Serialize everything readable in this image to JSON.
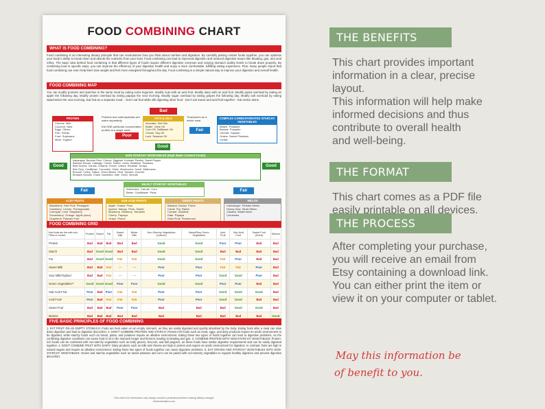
{
  "chart": {
    "title_part1": "FOOD ",
    "title_part2": "COMBINING",
    "title_part3": " CHART",
    "what_heading": "WHAT IS FOOD COMBINING?",
    "what_text": "Food combining is an interesting dietary principle that can revolutionise how you think about nutrition and digestion. By carefully pairing certain foods together, you can optimise your body's ability to break down and absorb the nutrients from your food. Food combining can lead to improved digestion and reduced digestive issues like bloating, gas, and acid reflux. The basic idea behind food combining is that different types of foods require different digestive enzymes and varying stomach acidity levels to break down properly. By combining food in specific ways, you can improve the efficiency of your digestive health and enjoy a more comfortable, fulfilling eating experience. Plus, many people report that food combining can even help them lose weight and feel more energised throughout the day. Food combining is a simple natural way to improve your digestion and overall health.",
    "map_heading": "FOOD COMBINING MAP",
    "map_text": "You can modify proteins and starches in the same meal by eating some legumes. Modify nuts with an acid fruit. Modify dairy with an acid fruit. Modify pasta overload by eating an apple the following day. Modify protein overload by eating papaya the next morning. Modify sugar overload by eating grapes the following day. Modify salt overload by eating watermelon the next morning. Eat fruit as a separate meal. - Don't eat fruit while still digesting other food - Don't eat sweet and acid fruit together - Eat melon alone.",
    "map": {
      "bad_label": "Bad",
      "poor_label": "Poor",
      "fair_label": "Fair",
      "good_label": "Good",
      "protein_title": "PROTEIN",
      "protein_items": "Cheese  Milk\nCoconut  Nuts\nEggs  Olives\nFish  Seeds\nFowl  Soybeans\nMeat  Yoghurt",
      "protein_note": "Proteins and carbohydrates are eaten separately.\n\nEat ONE particular concentrated protein at a single meal.",
      "fats_title": "FATS & OILS",
      "fats_items": "Avocado  Nut Oils\nButter  Olive Oil\nCorn Oil  Safflower Oil\nCream  Soy Oil\nLard  Sesame Oil",
      "juice_note": "Treat juices as a whole meal.",
      "starch_title": "COMPLEX CARBOHYDRATES STARCHY VEGETABLES",
      "starch_items": "Beans  Potatoes\nBreads  Pumpkin\nCereals  Squash\nGrains  Sweet Potatoes\nLentils",
      "nonstarchy_title": "NON-STARCHY VEGETABLES (High Water Content Foods)",
      "nonstarchy_items": "Asparagus  Burdock Root  Chicory  Eggplant  Kohlrabi  Parsley  Sweet Pepper\nBamboo Shoots  Cabbage  Chives  Endive  Leeks  Radishes  Tomatoes\nBeet Greens  Carrots  Collards  Fennel  Lettuce  Rhubarb  Turnips\nBok Choy  Cauliflower  Cucumber  Garlic  Mushrooms  Sorrel  Watercress\nBroccoli  Celery  Daikon  Green Beans  Okra  Spinach  Zucchini\nBrussels Sprouts  Chard  Dandelion  Kale  Onion  Sprouts",
      "mildly_title": "MILDLY STARCHY VEGETABLES",
      "mildly_items": "Artichokes  Carrots  Corn\nBeets  Cauliflower  Peas",
      "acid_title": "ACID FRUITS",
      "acid_items": "Blackberry  Kiwi Fruit  Pineapple\nCranberry  Lemon  Pomegranate\nCumquat  Lime  Raspberry\nGooseberry  Orange  Apple (sour)\nGrapefruit  Passion Fruit",
      "subacid_title": "SUB-ACID FRUITS",
      "subacid_items": "Apple  Guava  Pear\nApricot  Mango  Plum, Sweet\nBlueberry  Mulberry  Tamarillo\nCherry  Papaya\nGrape  Peach",
      "sweet_title": "SWEET FRUITS",
      "sweet_items": "Banana  Durian  Prune\nCarob  Fig  Raisin\nCurrant  Jackfruit\nDate  Papaya\nDried Fruit  Persimmon",
      "melon_title": "MELON",
      "melon_items": "Cantaloupe  Persian Melon\nHoney Dew  Musk Melon\nCasaba  Watermelon\nCrenshaw"
    },
    "grid_heading": "FOOD COMBINING GRID",
    "grid": {
      "corner": "*Acid fruits are fine with nuts. **Raw or cooked.",
      "columns": [
        "Protein",
        "Starch",
        "Fat",
        "Sweet Milk",
        "Butter Milk",
        "Non-Starchy Vegetables (Lettuce)",
        "Salad/Raw Green Vegetables",
        "Acid Fruit",
        "Sub-Acid Fruit",
        "Sweet Fruit (Dried)",
        "Melons"
      ],
      "rows": [
        {
          "label": "Protein",
          "cells": [
            "Bad",
            "Bad",
            "Bad",
            "Bad",
            "Bad",
            "Good",
            "Good",
            "Poor",
            "Poor",
            "Bad",
            "Bad"
          ]
        },
        {
          "label": "Starch",
          "cells": [
            "Bad",
            "Good",
            "Good",
            "Bad",
            "Bad",
            "Good",
            "Good",
            "Bad",
            "Bad",
            "Bad",
            "Bad"
          ]
        },
        {
          "label": "Fat",
          "cells": [
            "Bad",
            "Good",
            "Good",
            "Fair",
            "Fair",
            "Good",
            "Good",
            "Fair",
            "Poor",
            "Bad",
            "Bad"
          ]
        },
        {
          "label": "Sweet Milk",
          "cells": [
            "Bad",
            "Bad",
            "Fair",
            "—",
            "—",
            "Poor",
            "Poor",
            "Fair",
            "Fair",
            "Poor",
            "Bad"
          ]
        },
        {
          "label": "Sour Milk/Yoghurt",
          "cells": [
            "Bad",
            "Bad",
            "Fair",
            "—",
            "—",
            "Poor",
            "Poor",
            "Good",
            "Good",
            "Poor",
            "Bad"
          ]
        },
        {
          "label": "Green Vegetables**",
          "cells": [
            "Good",
            "Good",
            "Good",
            "Poor",
            "Poor",
            "Good",
            "Good",
            "Poor",
            "Poor",
            "Bad",
            "Bad"
          ]
        },
        {
          "label": "Sub-Acid Fruit",
          "cells": [
            "Poor",
            "Bad",
            "Poor",
            "Fair",
            "Fair",
            "Poor",
            "Poor",
            "Good",
            "Good",
            "Good",
            "Bad"
          ]
        },
        {
          "label": "Acid Fruit*",
          "cells": [
            "Poor",
            "Bad",
            "Fair",
            "Fair",
            "Fair",
            "Poor",
            "Poor",
            "Good",
            "Good",
            "Bad",
            "Bad"
          ]
        },
        {
          "label": "Sweet Fruit",
          "cells": [
            "Bad",
            "Bad",
            "Bad",
            "Poor",
            "Poor",
            "Bad",
            "Bad",
            "Bad",
            "Good",
            "Good",
            "Bad"
          ]
        },
        {
          "label": "Melons",
          "cells": [
            "Bad",
            "Bad",
            "Bad",
            "Bad",
            "Bad",
            "Bad",
            "Bad",
            "Bad",
            "Bad",
            "Bad",
            "Good"
          ]
        }
      ]
    },
    "principles_heading": "FIVE BASIC PRINCIPLES OF FOOD COMBINING",
    "principles_text": "1. EAT FRUIT ON AN EMPTY STOMACH: Fruits are best eaten on an empty stomach, as they are easily digested and quickly absorbed by the body. Eating fruits after a meal can slow down digestion and lead to digestive discomfort. 2. DON'T COMBINE PROTEIN AND STARCH: Protein-rich foods such as meat, eggs, and dairy products require an acidic environment to be digested, while starchy foods such as bread, pasta, and potatoes require an alkaline environment. Eating these two types of foods together can lead to digestive problems, as the conflicting digestive conditions can cause food to sit in the stomach longer and ferment, leading to bloating and gas. 3. COMBINE PROTEIN WITH NON-STARCHY VEGETABLES: Protein-rich foods can be combined with non-starchy vegetables such as leafy greens, broccoli, and bell peppers, as these foods have similar digestive requirements and can be easily digested together. 4. DON'T COMBINE FRUIT WITH DAIRY: Dairy products such as milk and cheese are high in protein and require an acidic environment for digestion. In contrast, fruits are high in natural sugars and require an alkaline environment. Eating these two types of foods together can cause digestive problems. 5. EAT GRAINS AND STARCHY VEGETABLES WITH NON-STARCHY VEGETABLES: Grains and starchy vegetables such as sweet potatoes and corn can be paired with non-starchy vegetables to support healthy digestion and prevent digestive discomfort.",
    "footer1": "This chart is for information only. Always consult a professional before making dietary changes.",
    "footer2": "thetrendmakers.com"
  },
  "panel": {
    "benefits_header": "THE BENEFITS",
    "benefits_lines": [
      "This chart provides important",
      "information in a clear, precise",
      "layout.",
      "This information will help make",
      "informed decisions and thus",
      "contribute to overall health",
      "and well-being."
    ],
    "format_header": "THE FORMAT",
    "format_lines": [
      "This chart comes as a PDF file",
      "easily printable on all devices."
    ],
    "process_header": "THE PROCESS",
    "process_lines": [
      "After completing your purchase,",
      "you will receive an email from",
      "Etsy containing a download link.",
      "You can either print the item or",
      "view it on your computer or tablet."
    ],
    "closing_lines": [
      "May this information be",
      "of benefit to you."
    ]
  },
  "colors": {
    "red": "#d42027",
    "sage": "#85a67a",
    "good": "#2e8b2e",
    "bad": "#c8102e",
    "fair": "#e07a00",
    "poor": "#2060c0"
  }
}
